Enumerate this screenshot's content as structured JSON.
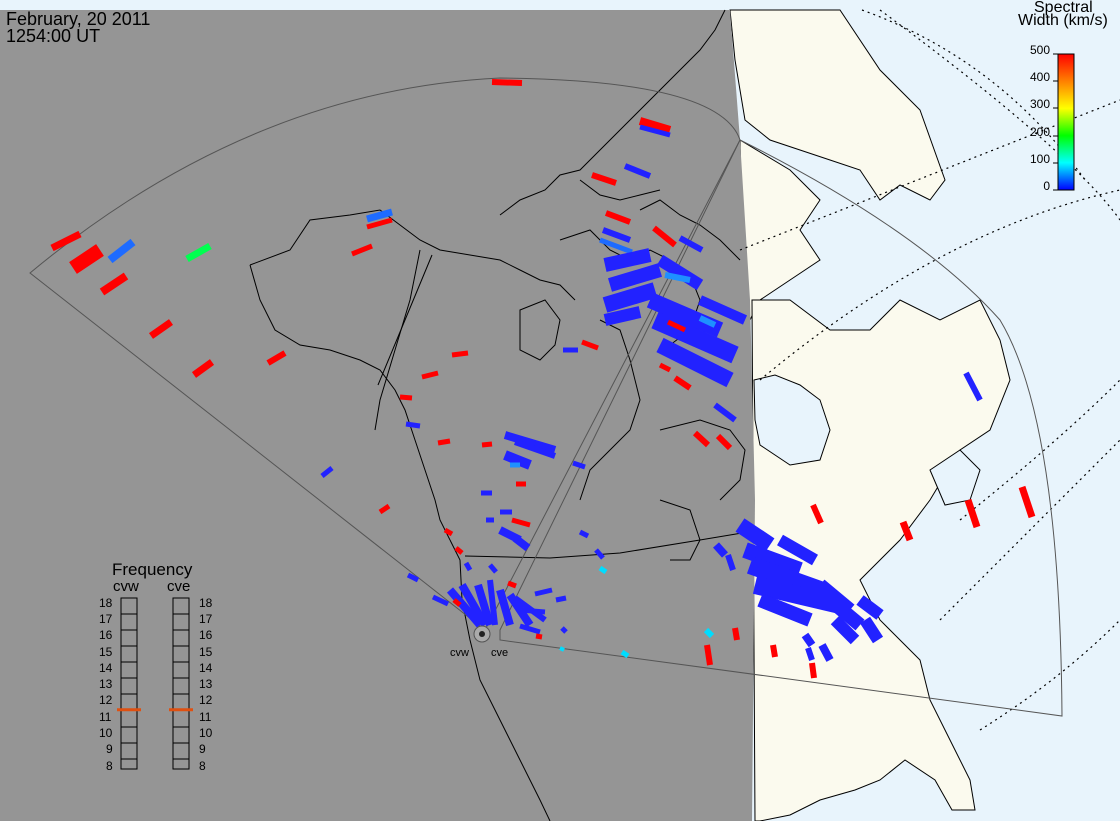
{
  "header": {
    "date": "February, 20 2011",
    "time": "1254:00 UT"
  },
  "colorbar": {
    "title_line1": "Spectral",
    "title_line2": "Width (km/s)",
    "ticks": [
      "500",
      "400",
      "300",
      "200",
      "100",
      "0"
    ],
    "colors": [
      "#ff0000",
      "#ff8000",
      "#ffff00",
      "#00ff00",
      "#00ffff",
      "#0000ff"
    ]
  },
  "frequency_panel": {
    "title": "Frequency",
    "radars": [
      {
        "name": "cvw",
        "value_mhz": 11
      },
      {
        "name": "cve",
        "value_mhz": 11
      }
    ],
    "ticks": [
      "18",
      "17",
      "16",
      "15",
      "14",
      "13",
      "12",
      "11",
      "10",
      "9",
      "8"
    ],
    "indicator_color": "#e05010"
  },
  "radar_sites": [
    {
      "name": "cvw"
    },
    {
      "name": "cve"
    }
  ],
  "colors": {
    "night_shade": "#959595",
    "land_day": "#fbfaee",
    "ocean_day": "#e8f4fc",
    "coastline": "#000000",
    "fov": "#444444",
    "grid": "#000000"
  }
}
